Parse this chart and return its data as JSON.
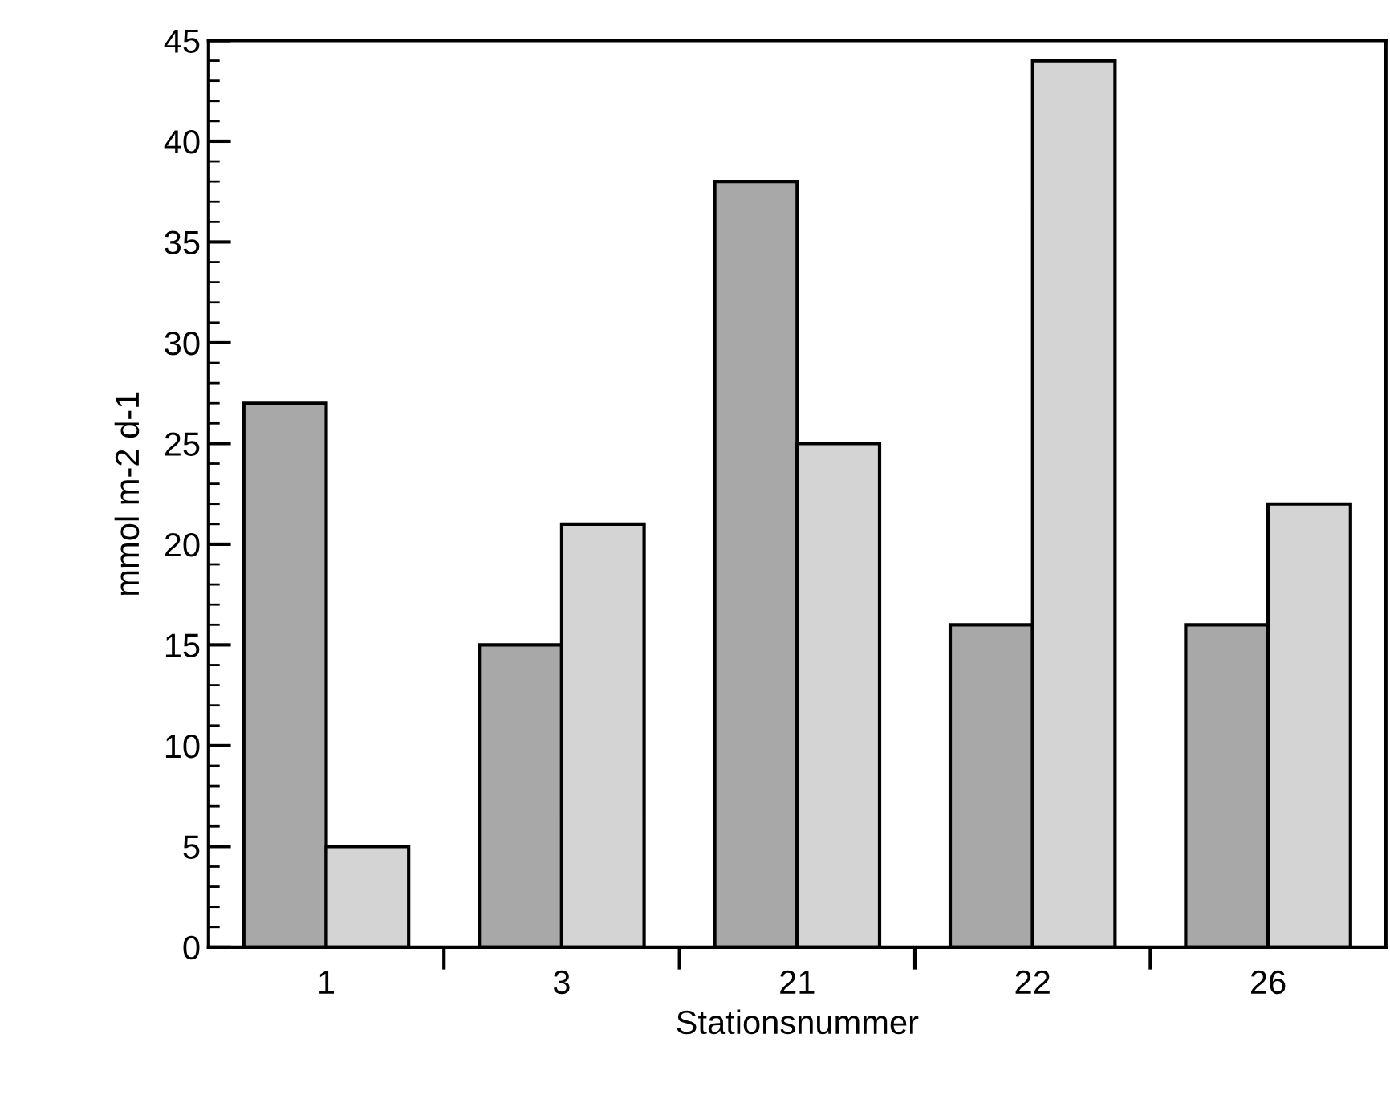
{
  "chart_data": {
    "type": "bar",
    "xlabel": "Stationsnummer",
    "ylabel": "mmol m-2 d-1",
    "categories": [
      "1",
      "3",
      "21",
      "22",
      "26"
    ],
    "series": [
      {
        "color": "#a8a8a8",
        "values": [
          27,
          15,
          38,
          16,
          16
        ]
      },
      {
        "color": "#d4d4d4",
        "values": [
          5,
          21,
          25,
          44,
          22
        ]
      }
    ],
    "ylim": [
      0,
      45
    ],
    "yticks": [
      0,
      5,
      10,
      15,
      20,
      25,
      30,
      35,
      40,
      45
    ],
    "grid": false,
    "legend": false
  }
}
